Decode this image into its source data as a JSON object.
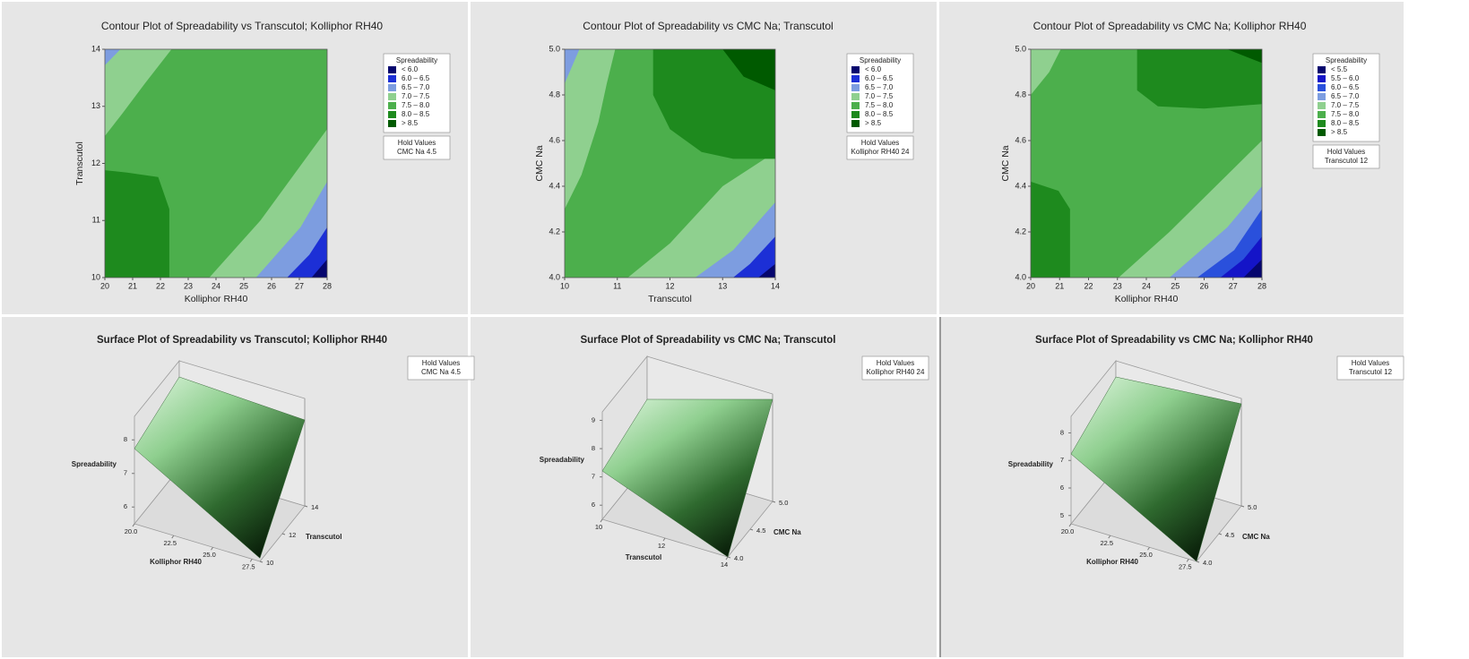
{
  "chart_data": [
    {
      "type": "contour",
      "title": "Contour Plot of Spreadability vs Transcutol; Kolliphor RH40",
      "xlabel": "Kolliphor RH40",
      "ylabel": "Transcutol",
      "xlim": [
        20,
        28
      ],
      "xticks": [
        20,
        21,
        22,
        23,
        24,
        25,
        26,
        27,
        28
      ],
      "ylim": [
        10,
        14
      ],
      "yticks": [
        10,
        11,
        12,
        13,
        14
      ],
      "legend": {
        "title": "Spreadability",
        "labels": [
          "< 6.0",
          "6.0 – 6.5",
          "6.5 – 7.0",
          "7.0 – 7.5",
          "7.5 – 8.0",
          "8.0 – 8.5",
          "> 8.5"
        ],
        "colors": [
          "#06066e",
          "#1c2fd6",
          "#7d9de0",
          "#8fd08f",
          "#4caf4c",
          "#1e8a1e",
          "#005a00"
        ]
      },
      "hold_values": {
        "title": "Hold Values",
        "text": "CMC Na 4.5"
      }
    },
    {
      "type": "contour",
      "title": "Contour Plot of Spreadability vs CMC Na; Transcutol",
      "xlabel": "Transcutol",
      "ylabel": "CMC Na",
      "xlim": [
        10,
        14
      ],
      "xticks": [
        10,
        11,
        12,
        13,
        14
      ],
      "ylim": [
        4,
        5
      ],
      "yticks": [
        {
          "value": 4,
          "label": "4.0"
        },
        4.2,
        4.4,
        4.6,
        4.8,
        {
          "value": 5,
          "label": "5.0"
        }
      ],
      "legend": {
        "title": "Spreadability",
        "labels": [
          "< 6.0",
          "6.0 – 6.5",
          "6.5 – 7.0",
          "7.0 – 7.5",
          "7.5 – 8.0",
          "8.0 – 8.5",
          "> 8.5"
        ],
        "colors": [
          "#06066e",
          "#1c2fd6",
          "#7d9de0",
          "#8fd08f",
          "#4caf4c",
          "#1e8a1e",
          "#005a00"
        ]
      },
      "hold_values": {
        "title": "Hold Values",
        "text": "Kolliphor RH40 24"
      }
    },
    {
      "type": "contour",
      "title": "Contour Plot of Spreadability vs CMC Na; Kolliphor RH40",
      "xlabel": "Kolliphor RH40",
      "ylabel": "CMC Na",
      "xlim": [
        20,
        28
      ],
      "xticks": [
        20,
        21,
        22,
        23,
        24,
        25,
        26,
        27,
        28
      ],
      "ylim": [
        4,
        5
      ],
      "yticks": [
        {
          "value": 4,
          "label": "4.0"
        },
        4.2,
        4.4,
        4.6,
        4.8,
        {
          "value": 5,
          "label": "5.0"
        }
      ],
      "legend": {
        "title": "Spreadability",
        "labels": [
          "< 5.5",
          "5.5 – 6.0",
          "6.0 – 6.5",
          "6.5 – 7.0",
          "7.0 – 7.5",
          "7.5 – 8.0",
          "8.0 – 8.5",
          "> 8.5"
        ],
        "colors": [
          "#06066e",
          "#1414c8",
          "#2a50dc",
          "#7d9de0",
          "#8fd08f",
          "#4caf4c",
          "#1e8a1e",
          "#005a00"
        ]
      },
      "hold_values": {
        "title": "Hold Values",
        "text": "Transcutol 12"
      }
    },
    {
      "type": "surface",
      "title": "Surface Plot of Spreadability vs Transcutol; Kolliphor RH40",
      "zlabel": "Spreadability",
      "xlabel": "Kolliphor RH40",
      "ylabel": "Transcutol",
      "zlim": [
        5.5,
        8.7
      ],
      "zticks": [
        6,
        7,
        8
      ],
      "xlim": [
        20,
        28
      ],
      "xticks": [
        {
          "value": 20,
          "label": "20.0"
        },
        22.5,
        {
          "value": 25,
          "label": "25.0"
        },
        27.5
      ],
      "ylim": [
        10,
        14
      ],
      "yticks": [
        10,
        12,
        14
      ],
      "hold_values": {
        "title": "Hold Values",
        "text": "CMC Na 4.5"
      }
    },
    {
      "type": "surface",
      "title": "Surface Plot of Spreadability vs CMC Na; Transcutol",
      "zlabel": "Spreadability",
      "xlabel": "Transcutol",
      "ylabel": "CMC Na",
      "zlim": [
        5.5,
        9.3
      ],
      "zticks": [
        6,
        7,
        8,
        9
      ],
      "xlim": [
        10,
        14
      ],
      "xticks": [
        10,
        12,
        14
      ],
      "ylim": [
        4,
        5
      ],
      "yticks": [
        {
          "value": 4,
          "label": "4.0"
        },
        4.5,
        {
          "value": 5,
          "label": "5.0"
        }
      ],
      "hold_values": {
        "title": "Hold Values",
        "text": "Kolliphor RH40 24"
      }
    },
    {
      "type": "surface",
      "title": "Surface Plot of Spreadability vs CMC Na; Kolliphor RH40",
      "zlabel": "Spreadability",
      "xlabel": "Kolliphor RH40",
      "ylabel": "CMC Na",
      "zlim": [
        4.7,
        8.6
      ],
      "zticks": [
        5,
        6,
        7,
        8
      ],
      "xlim": [
        20,
        28
      ],
      "xticks": [
        {
          "value": 20,
          "label": "20.0"
        },
        22.5,
        {
          "value": 25,
          "label": "25.0"
        },
        27.5
      ],
      "ylim": [
        4,
        5
      ],
      "yticks": [
        {
          "value": 4,
          "label": "4.0"
        },
        4.5,
        {
          "value": 5,
          "label": "5.0"
        }
      ],
      "hold_values": {
        "title": "Hold Values",
        "text": "Transcutol 12"
      }
    }
  ]
}
